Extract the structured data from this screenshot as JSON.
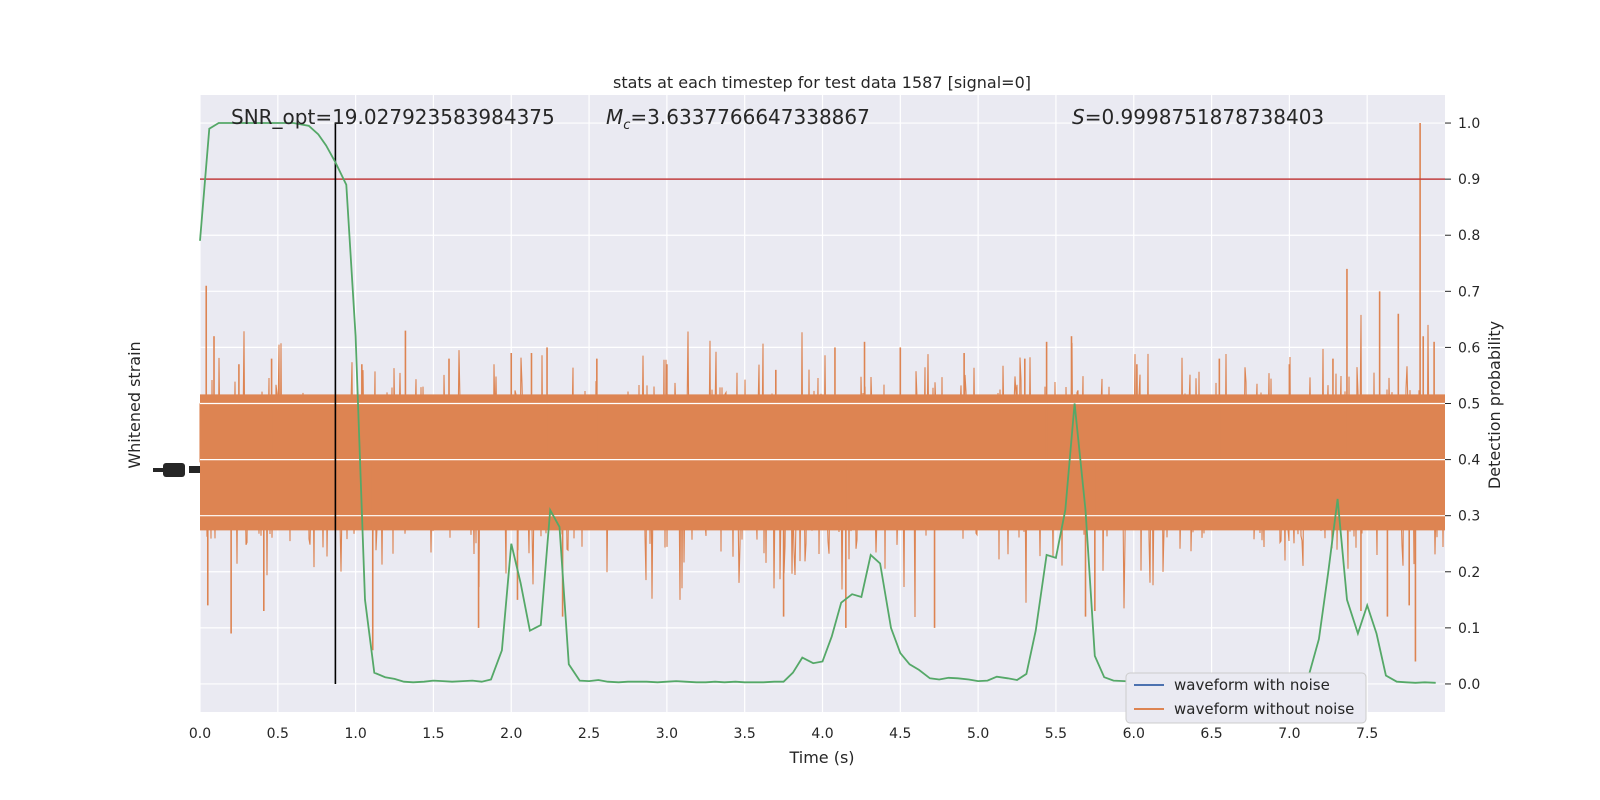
{
  "chart_data": {
    "type": "line",
    "title": "stats at each timestep for test data 1587 [signal=0]",
    "xlabel": "Time (s)",
    "ylabel_left": "Whitened strain",
    "ylabel_right": "Detection probability",
    "xlim": [
      0.0,
      8.0
    ],
    "ylim_right": [
      -0.05,
      1.05
    ],
    "xticks": [
      "0.0",
      "0.5",
      "1.0",
      "1.5",
      "2.0",
      "2.5",
      "3.0",
      "3.5",
      "4.0",
      "4.5",
      "5.0",
      "5.5",
      "6.0",
      "6.5",
      "7.0",
      "7.5"
    ],
    "yticks_right": [
      "0.0",
      "0.1",
      "0.2",
      "0.3",
      "0.4",
      "0.5",
      "0.6",
      "0.7",
      "0.8",
      "0.9",
      "1.0"
    ],
    "grid": true,
    "background": "#eaeaf2",
    "annotations": {
      "snr_text": "SNR_opt=19.027923583984375",
      "mc_prefix": "M",
      "mc_sub": "c",
      "mc_value": "=3.6337766647338867",
      "s_prefix": "S",
      "s_value": "=0.9998751878738403"
    },
    "threshold": {
      "value": 0.9,
      "color": "#c03d3e"
    },
    "marker_time": 0.87,
    "legend": {
      "placement": "lower right",
      "entries": [
        {
          "label": "waveform with noise",
          "color": "#4c72b0"
        },
        {
          "label": "waveform without noise",
          "color": "#dd8452"
        }
      ]
    },
    "strain_color": "#dd8452",
    "probability_color": "#55a868",
    "probability_series": {
      "name": "",
      "x": [
        0.0,
        0.06,
        0.12,
        0.2,
        0.3,
        0.4,
        0.5,
        0.6,
        0.7,
        0.76,
        0.81,
        0.87,
        0.94,
        1.0,
        1.06,
        1.12,
        1.19,
        1.25,
        1.31,
        1.37,
        1.44,
        1.5,
        1.56,
        1.62,
        1.69,
        1.75,
        1.81,
        1.87,
        1.94,
        2.0,
        2.06,
        2.12,
        2.19,
        2.25,
        2.31,
        2.37,
        2.44,
        2.5,
        2.56,
        2.62,
        2.69,
        2.75,
        2.81,
        2.87,
        2.94,
        3.0,
        3.06,
        3.12,
        3.19,
        3.25,
        3.31,
        3.37,
        3.44,
        3.5,
        3.56,
        3.62,
        3.69,
        3.75,
        3.81,
        3.87,
        3.94,
        4.0,
        4.06,
        4.12,
        4.19,
        4.25,
        4.31,
        4.37,
        4.44,
        4.5,
        4.56,
        4.62,
        4.69,
        4.75,
        4.81,
        4.87,
        4.94,
        5.0,
        5.06,
        5.12,
        5.19,
        5.25,
        5.31,
        5.37,
        5.44,
        5.5,
        5.56,
        5.62,
        5.69,
        5.75,
        5.81,
        5.87,
        5.94,
        6.0,
        6.06,
        6.12,
        6.19,
        6.25,
        6.31,
        6.37,
        6.44,
        6.5,
        6.56,
        6.62,
        6.69,
        6.75,
        6.81,
        6.87,
        6.94,
        7.0,
        7.06,
        7.12,
        7.19,
        7.25,
        7.31,
        7.37,
        7.44,
        7.5,
        7.56,
        7.62,
        7.69,
        7.75,
        7.81,
        7.87,
        7.94
      ],
      "y": [
        0.79,
        0.99,
        1.0,
        1.0,
        1.0,
        1.0,
        1.0,
        1.0,
        0.995,
        0.98,
        0.96,
        0.93,
        0.89,
        0.62,
        0.15,
        0.02,
        0.012,
        0.009,
        0.004,
        0.003,
        0.004,
        0.006,
        0.005,
        0.004,
        0.005,
        0.006,
        0.004,
        0.008,
        0.06,
        0.25,
        0.18,
        0.095,
        0.105,
        0.31,
        0.28,
        0.035,
        0.006,
        0.005,
        0.007,
        0.004,
        0.003,
        0.004,
        0.004,
        0.004,
        0.003,
        0.004,
        0.005,
        0.004,
        0.003,
        0.003,
        0.004,
        0.003,
        0.004,
        0.003,
        0.003,
        0.003,
        0.004,
        0.004,
        0.02,
        0.047,
        0.037,
        0.04,
        0.085,
        0.145,
        0.16,
        0.155,
        0.23,
        0.215,
        0.1,
        0.055,
        0.035,
        0.025,
        0.01,
        0.008,
        0.011,
        0.01,
        0.008,
        0.005,
        0.006,
        0.013,
        0.01,
        0.007,
        0.018,
        0.095,
        0.23,
        0.225,
        0.31,
        0.5,
        0.31,
        0.05,
        0.012,
        0.006,
        0.005,
        0.004,
        0.004,
        0.004,
        0.004,
        0.004,
        0.005,
        0.005,
        0.004,
        0.004,
        0.004,
        0.004,
        0.004,
        0.004,
        0.004,
        0.004,
        0.004,
        0.005,
        0.005,
        0.01,
        0.08,
        0.2,
        0.33,
        0.15,
        0.09,
        0.14,
        0.09,
        0.015,
        0.004,
        0.003,
        0.002,
        0.003,
        0.002
      ]
    },
    "strain_series": {
      "name": "",
      "description_free": true,
      "baseline": 0.395,
      "spikes": [
        [
          0.04,
          0.71
        ],
        [
          0.05,
          0.14
        ],
        [
          0.09,
          0.62
        ],
        [
          0.2,
          0.09
        ],
        [
          0.25,
          0.57
        ],
        [
          0.41,
          0.13
        ],
        [
          0.46,
          0.58
        ],
        [
          1.04,
          0.57
        ],
        [
          1.11,
          0.06
        ],
        [
          1.32,
          0.63
        ],
        [
          1.6,
          0.58
        ],
        [
          1.79,
          0.1
        ],
        [
          2.0,
          0.59
        ],
        [
          2.04,
          0.15
        ],
        [
          2.13,
          0.59
        ],
        [
          2.23,
          0.6
        ],
        [
          2.33,
          0.12
        ],
        [
          2.55,
          0.58
        ],
        [
          3.0,
          0.57
        ],
        [
          3.7,
          0.56
        ],
        [
          3.75,
          0.12
        ],
        [
          4.08,
          0.6
        ],
        [
          4.15,
          0.1
        ],
        [
          4.27,
          0.61
        ],
        [
          4.5,
          0.6
        ],
        [
          4.72,
          0.1
        ],
        [
          4.91,
          0.59
        ],
        [
          5.3,
          0.58
        ],
        [
          5.44,
          0.61
        ],
        [
          5.6,
          0.62
        ],
        [
          5.69,
          0.12
        ],
        [
          5.75,
          0.13
        ],
        [
          6.02,
          0.57
        ],
        [
          6.55,
          0.58
        ],
        [
          7.0,
          0.57
        ],
        [
          7.28,
          0.58
        ],
        [
          7.37,
          0.74
        ],
        [
          7.46,
          0.13
        ],
        [
          7.58,
          0.7
        ],
        [
          7.63,
          0.12
        ],
        [
          7.7,
          0.66
        ],
        [
          7.77,
          0.14
        ],
        [
          7.81,
          0.04
        ],
        [
          7.84,
          1.0
        ],
        [
          7.86,
          0.62
        ],
        [
          7.93,
          0.61
        ]
      ]
    }
  }
}
